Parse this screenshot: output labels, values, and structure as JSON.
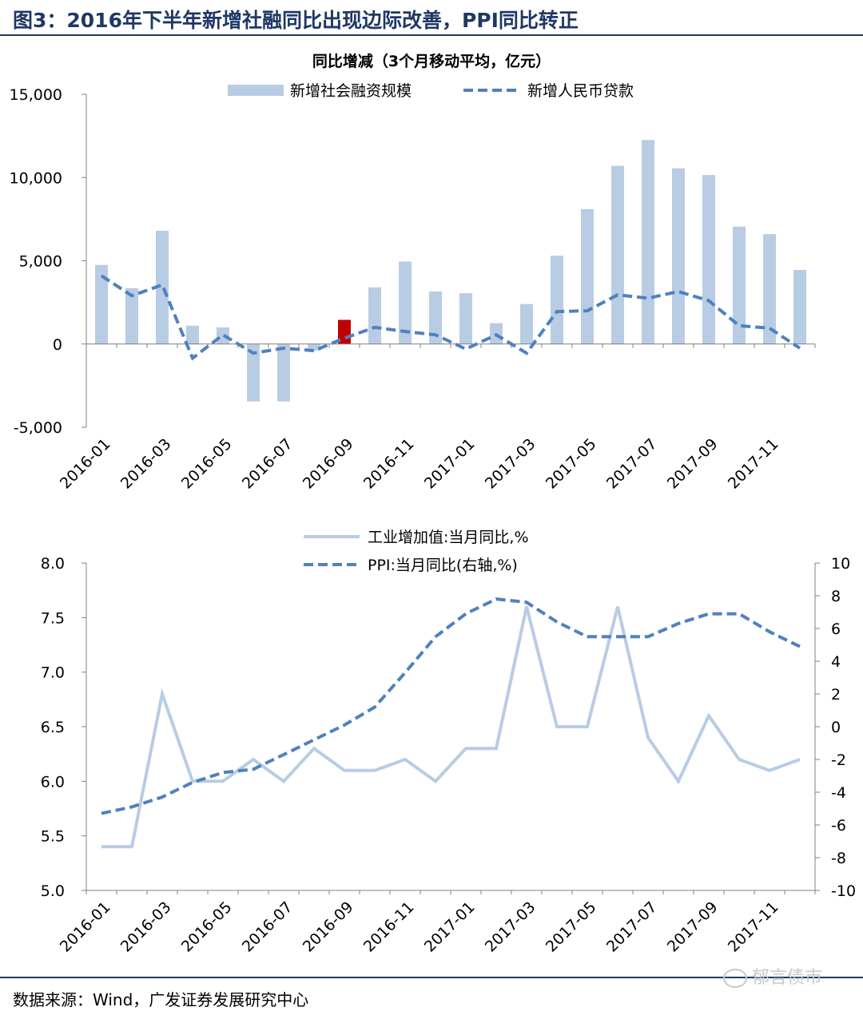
{
  "figure_title": "图3：2016年下半年新增社融同比出现边际改善，PPI同比转正",
  "source_text": "数据来源：Wind，广发证券发展研究中心",
  "watermark_text": "郁言债市",
  "colors": {
    "bar": "#b8cce4",
    "line_dashed": "#4f81bd",
    "line_light": "#b8cce4",
    "highlight": "#c00000",
    "title": "#1f3864"
  },
  "chart_data": [
    {
      "type": "bar",
      "title": "同比增减（3个月移动平均，亿元）",
      "x": [
        "2016-01",
        "2016-02",
        "2016-03",
        "2016-04",
        "2016-05",
        "2016-06",
        "2016-07",
        "2016-08",
        "2016-09",
        "2016-10",
        "2016-11",
        "2016-12",
        "2017-01",
        "2017-02",
        "2017-03",
        "2017-04",
        "2017-05",
        "2017-06",
        "2017-07",
        "2017-08",
        "2017-09",
        "2017-10",
        "2017-11",
        "2017-12"
      ],
      "x_tick_labels": [
        "2016-01",
        "2016-03",
        "2016-05",
        "2016-07",
        "2016-09",
        "2016-11",
        "2017-01",
        "2017-03",
        "2017-05",
        "2017-07",
        "2017-09",
        "2017-11"
      ],
      "ylim": [
        -5000,
        15000
      ],
      "y_ticks": [
        "-5,000",
        "0",
        "5,000",
        "10,000",
        "15,000"
      ],
      "legend_position": "top-center",
      "highlight_index": 8,
      "series": [
        {
          "name": "新增社会融资规模",
          "type": "bar",
          "values": [
            4750,
            3350,
            6800,
            1100,
            1000,
            -3450,
            -3450,
            -400,
            1450,
            3400,
            4950,
            3150,
            3050,
            1250,
            2400,
            5300,
            8100,
            10700,
            12250,
            10550,
            10150,
            7050,
            6600,
            4450
          ]
        },
        {
          "name": "新增人民币贷款",
          "type": "line-dashed",
          "values": [
            4100,
            2900,
            3550,
            -850,
            550,
            -550,
            -250,
            -400,
            350,
            1000,
            750,
            550,
            -300,
            550,
            -550,
            1950,
            2000,
            2950,
            2750,
            3150,
            2600,
            1100,
            950,
            -250
          ]
        }
      ]
    },
    {
      "type": "line",
      "x": [
        "2016-01",
        "2016-02",
        "2016-03",
        "2016-04",
        "2016-05",
        "2016-06",
        "2016-07",
        "2016-08",
        "2016-09",
        "2016-10",
        "2016-11",
        "2016-12",
        "2017-01",
        "2017-02",
        "2017-03",
        "2017-04",
        "2017-05",
        "2017-06",
        "2017-07",
        "2017-08",
        "2017-09",
        "2017-10",
        "2017-11",
        "2017-12"
      ],
      "x_tick_labels": [
        "2016-01",
        "2016-03",
        "2016-05",
        "2016-07",
        "2016-09",
        "2016-11",
        "2017-01",
        "2017-03",
        "2017-05",
        "2017-07",
        "2017-09",
        "2017-11"
      ],
      "ylim_left": [
        5.0,
        8.0
      ],
      "y_ticks_left": [
        "5.0",
        "5.5",
        "6.0",
        "6.5",
        "7.0",
        "7.5",
        "8.0"
      ],
      "ylim_right": [
        -10,
        10
      ],
      "y_ticks_right": [
        "-10",
        "-8",
        "-6",
        "-4",
        "-2",
        "0",
        "2",
        "4",
        "6",
        "8",
        "10"
      ],
      "legend_position": "top-center",
      "series": [
        {
          "name": "工业增加值:当月同比,%",
          "axis": "left",
          "style": "solid",
          "values": [
            5.4,
            5.4,
            6.8,
            6.0,
            6.0,
            6.2,
            6.0,
            6.3,
            6.1,
            6.1,
            6.2,
            6.0,
            6.3,
            6.3,
            7.6,
            6.5,
            6.5,
            7.6,
            6.4,
            6.0,
            6.6,
            6.2,
            6.1,
            6.2
          ]
        },
        {
          "name": "PPI:当月同比(右轴,%)",
          "axis": "right",
          "style": "dashed",
          "values": [
            -5.3,
            -4.9,
            -4.3,
            -3.4,
            -2.8,
            -2.6,
            -1.7,
            -0.8,
            0.1,
            1.2,
            3.3,
            5.5,
            6.9,
            7.8,
            7.6,
            6.4,
            5.5,
            5.5,
            5.5,
            6.3,
            6.9,
            6.9,
            5.8,
            4.9
          ]
        }
      ]
    }
  ]
}
